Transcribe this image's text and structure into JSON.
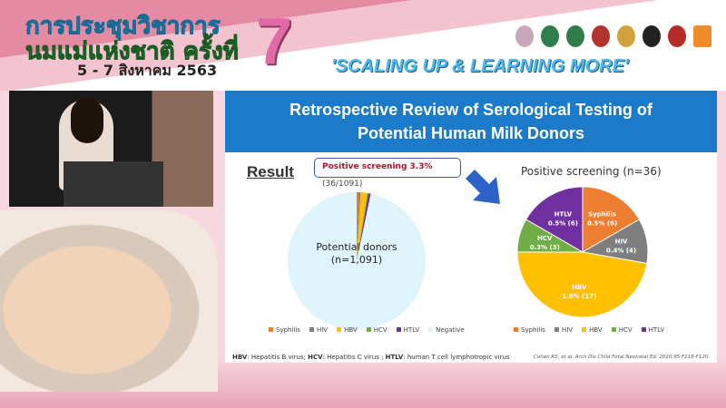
{
  "header": {
    "thai_line1": "การประชุมวิชาการ",
    "thai_line2": "นมแม่แห่งชาติ ครั้งที่",
    "edition": "7",
    "dates": "5 - 7 สิงหาคม 2563",
    "slogan": "'SCALING UP & LEARNING MORE'"
  },
  "slide": {
    "title_line1": "Retrospective Review of Serological Testing of",
    "title_line2": "Potential Human Milk Donors",
    "result_label": "Result",
    "callout_bold": "Positive screening 3.3%",
    "callout_rest": "(36/1091)",
    "footnote_parts": [
      "HBV",
      ": Hepatitis B virus; ",
      "HCV",
      ": Hepatitis C virus ; ",
      "HTLV",
      ": human T cell lymphotropic virus"
    ],
    "citation": "Cohen RS, et al. Arch Dis Child Fetal Neonatal Ed. 2010;95:F118-F120."
  },
  "colors": {
    "Syphilis": "#ed7d31",
    "HIV": "#7f7f7f",
    "HBV": "#ffc000",
    "HCV": "#70ad47",
    "HTLV": "#7030a0",
    "Negative": "#dff4fb"
  },
  "chart_data": [
    {
      "type": "pie",
      "center_label": "Potential donors",
      "center_sub": "(n=1,091)",
      "categories": [
        "Syphilis",
        "HIV",
        "HBV",
        "HCV",
        "HTLV",
        "Negative"
      ],
      "values": [
        6,
        4,
        17,
        3,
        6,
        1055
      ],
      "legend": [
        "Syphilis",
        "HIV",
        "HBV",
        "HCV",
        "HTLV",
        "Negative"
      ],
      "legend_position": "bottom"
    },
    {
      "type": "pie",
      "title": "Positive screening (n=36)",
      "categories": [
        "Syphilis",
        "HIV",
        "HBV",
        "HCV",
        "HTLV"
      ],
      "values": [
        6,
        4,
        17,
        3,
        6
      ],
      "labels": [
        [
          "Syphilis",
          "0.5% (6)"
        ],
        [
          "HIV",
          "0.4% (4)"
        ],
        [
          "HBV",
          "1.6% (17)"
        ],
        [
          "HCV",
          "0.3% (3)"
        ],
        [
          "HTLV",
          "0.5% (6)"
        ]
      ],
      "legend": [
        "Syphilis",
        "HIV",
        "HBV",
        "HCV",
        "HTLV"
      ],
      "legend_position": "bottom"
    }
  ]
}
